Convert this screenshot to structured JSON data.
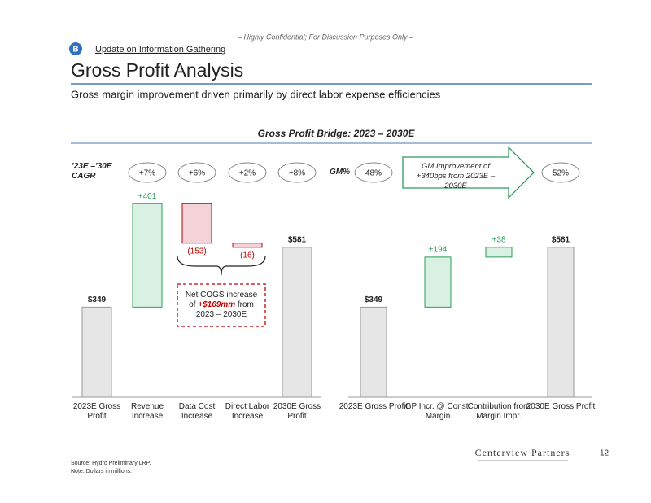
{
  "confidential": "– Highly Confidential; For Discussion Purposes Only –",
  "section_badge": "B",
  "section": "Update on Information Gathering",
  "title": "Gross Profit Analysis",
  "subtitle": "Gross margin improvement driven primarily by direct labor expense efficiencies",
  "bridge_title": "Gross Profit Bridge: 2023 – 2030E",
  "chart_data": [
    {
      "type": "waterfall",
      "categories": [
        "2023E Gross Profit",
        "Revenue Increase",
        "Data Cost Increase",
        "Direct Labor Increase",
        "2030E Gross Profit"
      ],
      "values": [
        349,
        401,
        -153,
        -16,
        581
      ],
      "value_labels": [
        "$349",
        "+401",
        "(153)",
        "(16)",
        "$581"
      ],
      "metric_label": "’23E –’30E CAGR",
      "metric_values": [
        null,
        "+7%",
        "+6%",
        "+2%",
        "+8%"
      ],
      "note": [
        "Net COGS increase of",
        "+$169mm",
        "from 2023 – 2030E"
      ],
      "colors": {
        "total": "#e6e6e6",
        "increase": "#d8f1e2",
        "decrease": "#f3d3d8"
      }
    },
    {
      "type": "waterfall",
      "categories": [
        "2023E Gross Profit",
        "GP Incr. @ Const. Margin",
        "Contribution from Margin Impr.",
        "2030E Gross Profit"
      ],
      "values": [
        349,
        194,
        38,
        581
      ],
      "value_labels": [
        "$349",
        "+194",
        "+38",
        "$581"
      ],
      "metric_label": "GM%",
      "metric_values": [
        "48%",
        null,
        null,
        "52%"
      ],
      "arrow_text": "GM Improvement of +340bps from 2023E – 2030E",
      "colors": {
        "total": "#e6e6e6",
        "increase": "#d8f1e2",
        "decrease": "#f3d3d8"
      }
    }
  ],
  "source": "Source:   Hydro Preliminary LRP.",
  "note": "Note:      Dollars in millions.",
  "logo": "Centerview Partners",
  "page_number": "12"
}
